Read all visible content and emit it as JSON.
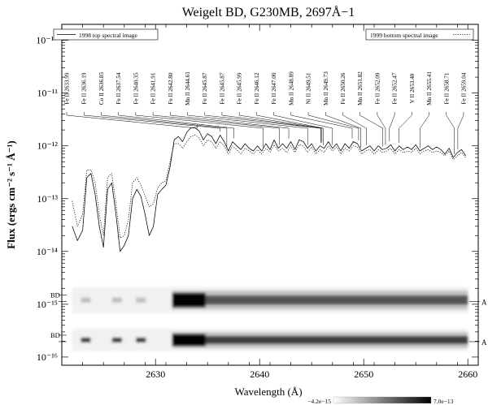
{
  "chart_data": {
    "type": "line",
    "title": "Weigelt BD, G230MB, 2697Å−1",
    "xlabel": "Wavelength (Å)",
    "ylabel": "Flux (ergs cm⁻² s⁻¹ Å⁻¹)",
    "x_scale": "linear",
    "y_scale": "log",
    "xlim": [
      2621.0,
      2661.0
    ],
    "ylim": [
      7e-17,
      2e-10
    ],
    "x_ticks": [
      2630,
      2640,
      2650,
      2660
    ],
    "x_tick_labels": [
      "2630",
      "2640",
      "2650",
      "2660"
    ],
    "y_ticks": [
      1e-16,
      1e-15,
      1e-14,
      1e-13,
      1e-12,
      1e-11,
      1e-10
    ],
    "y_tick_labels": [
      "10⁻¹⁶",
      "10⁻¹⁵",
      "10⁻¹⁴",
      "10⁻¹³",
      "10⁻¹²",
      "10⁻¹¹",
      "10⁻¹⁰"
    ],
    "series": [
      {
        "name": "1998 top spectral image",
        "style": "solid",
        "x": [
          2622.0,
          2622.5,
          2623.0,
          2623.4,
          2623.8,
          2624.2,
          2624.6,
          2625.0,
          2625.4,
          2625.8,
          2626.2,
          2626.6,
          2627.0,
          2627.4,
          2627.8,
          2628.2,
          2628.6,
          2629.0,
          2629.4,
          2629.8,
          2630.2,
          2630.6,
          2631.0,
          2631.4,
          2631.8,
          2632.2,
          2632.6,
          2633.0,
          2633.4,
          2633.8,
          2634.2,
          2634.6,
          2635.0,
          2635.4,
          2635.8,
          2636.2,
          2636.6,
          2637.0,
          2637.4,
          2637.8,
          2638.2,
          2638.6,
          2639.0,
          2639.4,
          2639.8,
          2640.2,
          2640.6,
          2641.0,
          2641.4,
          2641.8,
          2642.2,
          2642.6,
          2643.0,
          2643.4,
          2643.8,
          2644.2,
          2644.6,
          2645.0,
          2645.4,
          2645.8,
          2646.2,
          2646.6,
          2647.0,
          2647.4,
          2647.8,
          2648.2,
          2648.6,
          2649.0,
          2649.4,
          2649.8,
          2650.2,
          2650.6,
          2651.0,
          2651.4,
          2651.8,
          2652.2,
          2652.6,
          2653.0,
          2653.4,
          2653.8,
          2654.2,
          2654.6,
          2655.0,
          2655.4,
          2655.8,
          2656.2,
          2656.6,
          2657.0,
          2657.4,
          2657.8,
          2658.2,
          2658.6,
          2659.0,
          2659.4,
          2659.8
        ],
        "y": [
          3e-14,
          1.6e-14,
          2.5e-14,
          2.5e-13,
          3e-13,
          1.2e-13,
          3e-14,
          1.2e-14,
          1.5e-13,
          2e-13,
          5e-14,
          1e-14,
          1.3e-14,
          2e-14,
          1e-13,
          1.5e-13,
          1.1e-13,
          5e-14,
          2e-14,
          3e-14,
          1.2e-13,
          1.5e-13,
          1.8e-13,
          4e-13,
          1.3e-12,
          1.5e-12,
          1.2e-12,
          1.8e-12,
          2.2e-12,
          2.2e-12,
          1.9e-12,
          1.3e-12,
          1.7e-12,
          1.5e-12,
          1.1e-12,
          1.6e-12,
          1.2e-12,
          8e-13,
          1.2e-12,
          1e-12,
          8.5e-13,
          1.1e-12,
          9e-13,
          8e-13,
          1e-12,
          8e-13,
          1.1e-12,
          8.5e-13,
          1.3e-12,
          9e-13,
          1.1e-12,
          9e-13,
          1.2e-12,
          8.5e-13,
          1.3e-12,
          1.2e-12,
          9e-13,
          1.1e-12,
          8e-13,
          1e-12,
          9e-13,
          1.2e-12,
          9e-13,
          1.1e-12,
          8e-13,
          1.1e-12,
          9e-13,
          1.2e-12,
          1.1e-12,
          8e-13,
          9e-13,
          1e-12,
          8e-13,
          1e-12,
          8.5e-13,
          9e-13,
          1.05e-12,
          8e-13,
          1e-12,
          8.5e-13,
          9.5e-13,
          8.5e-13,
          1.05e-12,
          8e-13,
          9e-13,
          1e-12,
          8.5e-13,
          9.5e-13,
          8.5e-13,
          7e-13,
          9e-13,
          6e-13,
          7.5e-13,
          8.5e-13,
          6.5e-13
        ]
      },
      {
        "name": "1999 bottom spectral image",
        "style": "dotted",
        "x": [
          2622.0,
          2622.5,
          2623.0,
          2623.4,
          2623.8,
          2624.2,
          2624.6,
          2625.0,
          2625.4,
          2625.8,
          2626.2,
          2626.6,
          2627.0,
          2627.4,
          2627.8,
          2628.2,
          2628.6,
          2629.0,
          2629.4,
          2629.8,
          2630.2,
          2630.6,
          2631.0,
          2631.4,
          2631.8,
          2632.2,
          2632.6,
          2633.0,
          2633.4,
          2633.8,
          2634.2,
          2634.6,
          2635.0,
          2635.4,
          2635.8,
          2636.2,
          2636.6,
          2637.0,
          2637.4,
          2637.8,
          2638.2,
          2638.6,
          2639.0,
          2639.4,
          2639.8,
          2640.2,
          2640.6,
          2641.0,
          2641.4,
          2641.8,
          2642.2,
          2642.6,
          2643.0,
          2643.4,
          2643.8,
          2644.2,
          2644.6,
          2645.0,
          2645.4,
          2645.8,
          2646.2,
          2646.6,
          2647.0,
          2647.4,
          2647.8,
          2648.2,
          2648.6,
          2649.0,
          2649.4,
          2649.8,
          2650.2,
          2650.6,
          2651.0,
          2651.4,
          2651.8,
          2652.2,
          2652.6,
          2653.0,
          2653.4,
          2653.8,
          2654.2,
          2654.6,
          2655.0,
          2655.4,
          2655.8,
          2656.2,
          2656.6,
          2657.0,
          2657.4,
          2657.8,
          2658.2,
          2658.6,
          2659.0,
          2659.4,
          2659.8
        ],
        "y": [
          9e-14,
          3e-14,
          5e-14,
          3.5e-13,
          3.5e-13,
          2e-13,
          5e-14,
          2e-14,
          2.5e-13,
          3e-13,
          8e-14,
          1.8e-14,
          2e-14,
          4e-14,
          2e-13,
          2.5e-13,
          1.8e-13,
          1.1e-13,
          7e-14,
          8e-14,
          1.6e-13,
          2e-13,
          2.2e-13,
          5e-13,
          1.1e-12,
          1.1e-12,
          9e-13,
          1.2e-12,
          1.5e-12,
          1.6e-12,
          1.4e-12,
          1e-12,
          1.3e-12,
          1.2e-12,
          9e-13,
          1.2e-12,
          1e-12,
          7e-13,
          1e-12,
          8.5e-13,
          7e-13,
          9e-13,
          8e-13,
          7e-13,
          8.5e-13,
          7e-13,
          9e-13,
          7.5e-13,
          1.05e-12,
          8e-13,
          9e-13,
          7.5e-13,
          1e-12,
          7.5e-13,
          1.05e-12,
          1e-12,
          7.5e-13,
          9.5e-13,
          7e-13,
          8.5e-13,
          7.5e-13,
          1e-12,
          8e-13,
          9.5e-13,
          7e-13,
          9e-13,
          8e-13,
          1e-12,
          9.5e-13,
          7e-13,
          8e-13,
          8.5e-13,
          7e-13,
          8.5e-13,
          7.5e-13,
          8e-13,
          9e-13,
          7e-13,
          8.5e-13,
          7.5e-13,
          8e-13,
          7.5e-13,
          9e-13,
          7e-13,
          8e-13,
          8.5e-13,
          7.5e-13,
          8e-13,
          7.5e-13,
          6.5e-13,
          8e-13,
          5.5e-13,
          6.5e-13,
          7.5e-13,
          6e-13
        ]
      }
    ],
    "line_ids": [
      {
        "label": "Fe II 2633.99",
        "wavelength": 2633.99
      },
      {
        "label": "Fe II 2636.19",
        "wavelength": 2636.19
      },
      {
        "label": "Co II 2636.85",
        "wavelength": 2636.85
      },
      {
        "label": "Fe II 2637.54",
        "wavelength": 2637.54
      },
      {
        "label": "Fe II 2640.35",
        "wavelength": 2640.35
      },
      {
        "label": "Fe II 2641.91",
        "wavelength": 2641.91
      },
      {
        "label": "Fe II 2642.80",
        "wavelength": 2642.8
      },
      {
        "label": "Mn II 2644.61",
        "wavelength": 2644.61
      },
      {
        "label": "Fe II 2645.87",
        "wavelength": 2645.87
      },
      {
        "label": "Fe II 2645.87",
        "wavelength": 2645.87
      },
      {
        "label": "Fe II 2645.99",
        "wavelength": 2645.99
      },
      {
        "label": "Fe II 2646.12",
        "wavelength": 2646.12
      },
      {
        "label": "Fe II 2647.00",
        "wavelength": 2647.0
      },
      {
        "label": "Mn II 2648.89",
        "wavelength": 2648.89
      },
      {
        "label": "Ni II 2649.51",
        "wavelength": 2649.51
      },
      {
        "label": "Mn II 2649.73",
        "wavelength": 2649.73
      },
      {
        "label": "Fe II 2650.26",
        "wavelength": 2650.26
      },
      {
        "label": "Mn II 2651.82",
        "wavelength": 2651.82
      },
      {
        "label": "Fe II 2652.09",
        "wavelength": 2652.09
      },
      {
        "label": "Fe II 2652.47",
        "wavelength": 2652.47
      },
      {
        "label": "V II 2653.40",
        "wavelength": 2653.4
      },
      {
        "label": "Mn II 2655.41",
        "wavelength": 2655.41
      },
      {
        "label": "Fe II 2658.71",
        "wavelength": 2658.71
      },
      {
        "label": "Fe II 2659.04",
        "wavelength": 2659.04
      }
    ],
    "spectral_images": [
      {
        "left_label": "BD",
        "right_label": "A"
      },
      {
        "left_label": "BD",
        "right_label": "A"
      }
    ],
    "colorbar": {
      "min_label": "−4.2e−15",
      "max_label": "7.0e−13",
      "colors": [
        "#ffffff",
        "#000000"
      ]
    },
    "grid": false,
    "legend": [
      "top-left",
      "top-right"
    ]
  }
}
